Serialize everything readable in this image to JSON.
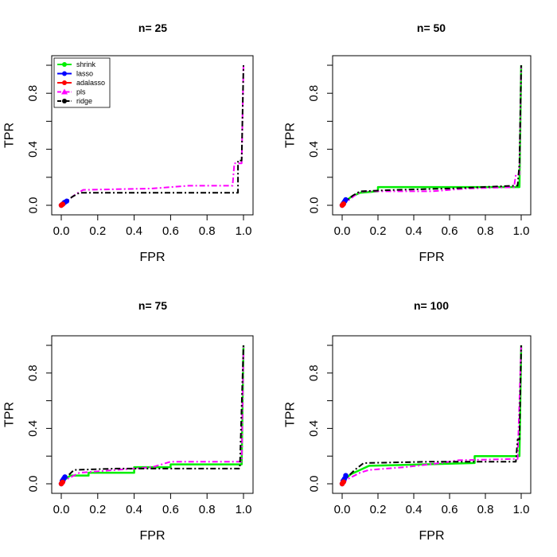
{
  "chart_data": {
    "type": "line",
    "x_label": "FPR",
    "y_label": "TPR",
    "xlim": [
      0,
      1
    ],
    "ylim": [
      0,
      1
    ],
    "x_ticks": [
      "0.0",
      "0.2",
      "0.4",
      "0.6",
      "0.8",
      "1.0"
    ],
    "y_ticks": [
      "0.0",
      "0.4",
      "0.8"
    ],
    "legend": {
      "placement": "top-left",
      "entries": [
        {
          "name": "shrink",
          "color": "#00ee00",
          "style": "solid",
          "marker": "circle"
        },
        {
          "name": "lasso",
          "color": "#0000ff",
          "style": "solid",
          "marker": "circle"
        },
        {
          "name": "adalasso",
          "color": "#ff0000",
          "style": "solid",
          "marker": "circle"
        },
        {
          "name": "pls",
          "color": "#ff00ff",
          "style": "dashdot",
          "marker": "triangle"
        },
        {
          "name": "ridge",
          "color": "#000000",
          "style": "dashdot",
          "marker": "circle"
        }
      ]
    },
    "panels": [
      {
        "title": "n= 25",
        "series": [
          {
            "name": "pls",
            "points": [
              [
                0,
                0
              ],
              [
                0.04,
                0.04
              ],
              [
                0.08,
                0.08
              ],
              [
                0.12,
                0.11
              ],
              [
                0.5,
                0.12
              ],
              [
                0.7,
                0.14
              ],
              [
                0.94,
                0.14
              ],
              [
                0.95,
                0.3
              ],
              [
                0.99,
                0.3
              ],
              [
                1,
                1
              ]
            ]
          },
          {
            "name": "ridge",
            "points": [
              [
                0,
                0
              ],
              [
                0.03,
                0.03
              ],
              [
                0.06,
                0.06
              ],
              [
                0.1,
                0.09
              ],
              [
                0.2,
                0.09
              ],
              [
                0.97,
                0.09
              ],
              [
                0.97,
                0.32
              ],
              [
                0.99,
                0.32
              ],
              [
                1,
                1
              ]
            ]
          },
          {
            "name": "lasso",
            "points": [
              [
                0,
                0
              ],
              [
                0.005,
                0.005
              ],
              [
                0.01,
                0.01
              ],
              [
                0.015,
                0.018
              ],
              [
                0.02,
                0.022
              ],
              [
                0.03,
                0.03
              ]
            ]
          },
          {
            "name": "adalasso",
            "points": [
              [
                0,
                0
              ],
              [
                0.003,
                0.003
              ],
              [
                0.005,
                0.005
              ],
              [
                0.008,
                0.008
              ]
            ]
          }
        ]
      },
      {
        "title": "n= 50",
        "series": [
          {
            "name": "shrink",
            "points": [
              [
                0,
                0
              ],
              [
                0.02,
                0.03
              ],
              [
                0.05,
                0.06
              ],
              [
                0.1,
                0.09
              ],
              [
                0.2,
                0.1
              ],
              [
                0.2,
                0.13
              ],
              [
                0.99,
                0.13
              ],
              [
                1,
                1
              ]
            ]
          },
          {
            "name": "pls",
            "points": [
              [
                0,
                0
              ],
              [
                0.04,
                0.04
              ],
              [
                0.08,
                0.08
              ],
              [
                0.12,
                0.1
              ],
              [
                0.5,
                0.1
              ],
              [
                0.7,
                0.12
              ],
              [
                0.96,
                0.13
              ],
              [
                0.97,
                0.22
              ],
              [
                0.99,
                0.22
              ],
              [
                1,
                1
              ]
            ]
          },
          {
            "name": "ridge",
            "points": [
              [
                0,
                0
              ],
              [
                0.03,
                0.04
              ],
              [
                0.06,
                0.07
              ],
              [
                0.1,
                0.1
              ],
              [
                0.3,
                0.11
              ],
              [
                0.6,
                0.12
              ],
              [
                0.96,
                0.14
              ],
              [
                0.98,
                0.14
              ],
              [
                0.99,
                0.3
              ],
              [
                1,
                1
              ]
            ]
          },
          {
            "name": "lasso",
            "points": [
              [
                0,
                0
              ],
              [
                0.005,
                0.01
              ],
              [
                0.01,
                0.02
              ],
              [
                0.015,
                0.03
              ],
              [
                0.02,
                0.04
              ]
            ]
          },
          {
            "name": "adalasso",
            "points": [
              [
                0,
                0
              ],
              [
                0.003,
                0.004
              ],
              [
                0.005,
                0.006
              ],
              [
                0.008,
                0.01
              ]
            ]
          }
        ]
      },
      {
        "title": "n= 75",
        "series": [
          {
            "name": "shrink",
            "points": [
              [
                0,
                0
              ],
              [
                0.02,
                0.03
              ],
              [
                0.05,
                0.06
              ],
              [
                0.15,
                0.06
              ],
              [
                0.15,
                0.08
              ],
              [
                0.4,
                0.08
              ],
              [
                0.4,
                0.12
              ],
              [
                0.6,
                0.12
              ],
              [
                0.6,
                0.14
              ],
              [
                0.99,
                0.14
              ],
              [
                1,
                1
              ]
            ]
          },
          {
            "name": "pls",
            "points": [
              [
                0,
                0
              ],
              [
                0.04,
                0.04
              ],
              [
                0.1,
                0.08
              ],
              [
                0.3,
                0.1
              ],
              [
                0.5,
                0.12
              ],
              [
                0.6,
                0.16
              ],
              [
                0.99,
                0.16
              ],
              [
                1,
                1
              ]
            ]
          },
          {
            "name": "ridge",
            "points": [
              [
                0,
                0
              ],
              [
                0.03,
                0.05
              ],
              [
                0.07,
                0.1
              ],
              [
                0.3,
                0.11
              ],
              [
                0.98,
                0.11
              ],
              [
                1,
                1
              ]
            ]
          },
          {
            "name": "lasso",
            "points": [
              [
                0,
                0
              ],
              [
                0.005,
                0.02
              ],
              [
                0.01,
                0.03
              ],
              [
                0.015,
                0.04
              ],
              [
                0.02,
                0.05
              ]
            ]
          },
          {
            "name": "adalasso",
            "points": [
              [
                0,
                0
              ],
              [
                0.003,
                0.005
              ],
              [
                0.005,
                0.01
              ],
              [
                0.008,
                0.012
              ]
            ]
          }
        ]
      },
      {
        "title": "n= 100",
        "series": [
          {
            "name": "shrink",
            "points": [
              [
                0,
                0
              ],
              [
                0.02,
                0.04
              ],
              [
                0.05,
                0.07
              ],
              [
                0.1,
                0.1
              ],
              [
                0.15,
                0.13
              ],
              [
                0.74,
                0.15
              ],
              [
                0.74,
                0.2
              ],
              [
                0.99,
                0.2
              ],
              [
                1,
                1
              ]
            ]
          },
          {
            "name": "pls",
            "points": [
              [
                0,
                0
              ],
              [
                0.04,
                0.04
              ],
              [
                0.1,
                0.08
              ],
              [
                0.15,
                0.1
              ],
              [
                0.35,
                0.12
              ],
              [
                0.55,
                0.15
              ],
              [
                0.65,
                0.17
              ],
              [
                0.98,
                0.18
              ],
              [
                1,
                1
              ]
            ]
          },
          {
            "name": "ridge",
            "points": [
              [
                0,
                0
              ],
              [
                0.03,
                0.05
              ],
              [
                0.07,
                0.1
              ],
              [
                0.12,
                0.15
              ],
              [
                0.5,
                0.16
              ],
              [
                0.97,
                0.16
              ],
              [
                0.98,
                0.32
              ],
              [
                0.99,
                0.32
              ],
              [
                1,
                1
              ]
            ]
          },
          {
            "name": "lasso",
            "points": [
              [
                0,
                0
              ],
              [
                0.005,
                0.02
              ],
              [
                0.01,
                0.03
              ],
              [
                0.015,
                0.04
              ],
              [
                0.02,
                0.06
              ]
            ]
          },
          {
            "name": "adalasso",
            "points": [
              [
                0,
                0
              ],
              [
                0.003,
                0.006
              ],
              [
                0.005,
                0.01
              ],
              [
                0.008,
                0.014
              ]
            ]
          }
        ]
      }
    ]
  }
}
